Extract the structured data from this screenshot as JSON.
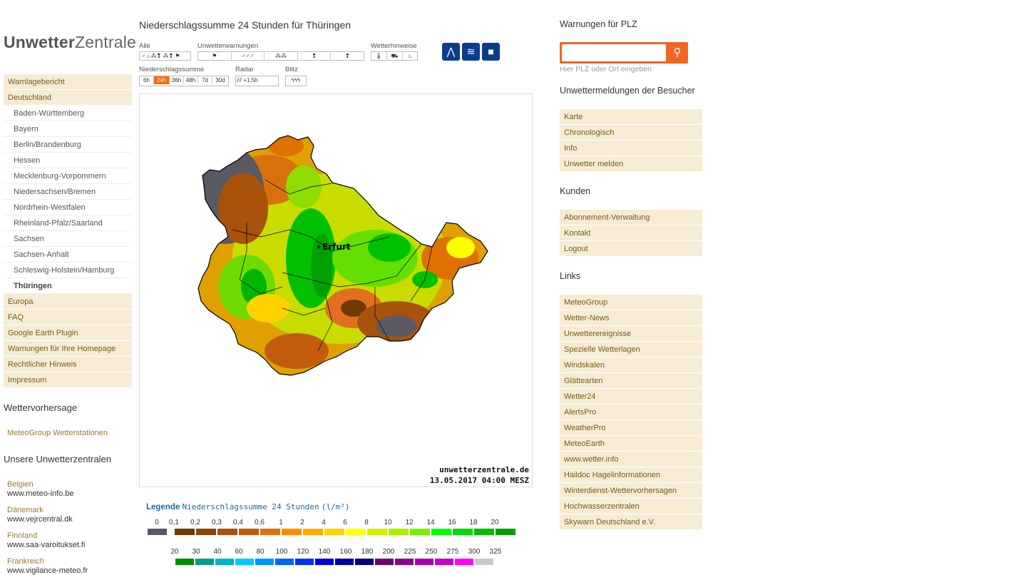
{
  "logo": {
    "bold": "Unwetter",
    "normal": "Zentrale"
  },
  "nav": {
    "items_top": [
      "Warnlagebericht",
      "Deutschland"
    ],
    "subitems": [
      "Baden-Württemberg",
      "Bayern",
      "Berlin/Brandenburg",
      "Hessen",
      "Mecklenburg-Vorpommern",
      "Niedersachsen/Bremen",
      "Nordrhein-Westfalen",
      "Rheinland-Pfalz/Saarland",
      "Sachsen",
      "Sachsen-Anhalt",
      "Schleswig-Holstein/Hamburg",
      "Thüringen"
    ],
    "active_sub": "Thüringen",
    "items_bottom": [
      "Europa",
      "FAQ",
      "Google Earth Plugin",
      "Warnungen für Ihre Homepage",
      "Rechtlicher Hinweis",
      "Impressum"
    ]
  },
  "forecast": {
    "heading": "Wettervorhersage",
    "link": "MeteoGroup Wetterstationen"
  },
  "centrals": {
    "heading": "Unsere Unwetterzentralen",
    "items": [
      {
        "country": "Belgien",
        "url": "www.meteo-info.be"
      },
      {
        "country": "Dänemark",
        "url": "www.vejrcentral.dk"
      },
      {
        "country": "Finnland",
        "url": "www.saa-varoitukset.fi"
      },
      {
        "country": "Frankreich",
        "url": "www.vigilance-meteo.fr"
      }
    ]
  },
  "page": {
    "title": "Niederschlagssumme 24 Stunden für Thüringen"
  },
  "toolbar": {
    "alle": "Alle",
    "unwetterwarnungen": "Unwetterwarnungen",
    "wetterhinweise": "Wetterhinweise",
    "niederschlagssumme": "Niederschlagssumme",
    "radar": "Radar",
    "blitz": "Blitz",
    "periods": [
      "6h",
      "24h",
      "36h",
      "48h",
      "7d",
      "30d"
    ],
    "selected_period": "24h",
    "radar_label": "+1,5h",
    "icons": [
      "autobahn-icon",
      "hochwasser-icon",
      "webcam-icon"
    ]
  },
  "map": {
    "city": "Erfurt",
    "watermark": "unwetterzentrale.de",
    "timestamp": "13.05.2017 04:00 MESZ"
  },
  "legend": {
    "label": "Legende",
    "title": "Niederschlagssumme 24 Stunden",
    "unit": "(l/m²)",
    "row1_ticks": [
      "0",
      "0,1",
      "0,2",
      "0,3",
      "0,4",
      "0,6",
      "1",
      "2",
      "4",
      "6",
      "8",
      "10",
      "12",
      "14",
      "16",
      "18",
      "20"
    ],
    "row1_colors": [
      "#5a5a64",
      "#6e3a06",
      "#8c4408",
      "#a8520c",
      "#c05c0c",
      "#e0700c",
      "#ff8c00",
      "#ffaa00",
      "#ffd200",
      "#ffff00",
      "#d2f000",
      "#aaf000",
      "#78f000",
      "#00ff00",
      "#00dc00",
      "#00c000",
      "#00a000"
    ],
    "row2_ticks": [
      "20",
      "30",
      "40",
      "60",
      "80",
      "100",
      "120",
      "140",
      "160",
      "180",
      "200",
      "225",
      "250",
      "275",
      "300",
      "325"
    ],
    "row2_colors": [
      "#008c00",
      "#0a9a8c",
      "#00b4c8",
      "#00c8ff",
      "#0096ff",
      "#0064ff",
      "#0032ff",
      "#0000dc",
      "#0000aa",
      "#000080",
      "#6e006e",
      "#8c008c",
      "#aa00aa",
      "#c800c8",
      "#ff00ff",
      "#c8c8c8"
    ]
  },
  "right": {
    "plz_heading": "Warnungen für PLZ",
    "search_placeholder": "",
    "hint": "Hier PLZ oder Ort eingeben",
    "visitors_heading": "Unwettermeldungen der Besucher",
    "visitors": [
      "Karte",
      "Chronologisch",
      "Info",
      "Unwetter melden"
    ],
    "kunden_heading": "Kunden",
    "kunden": [
      "Abonnement-Verwaltung",
      "Kontakt",
      "Logout"
    ],
    "links_heading": "Links",
    "links": [
      "MeteoGroup",
      "Wetter-News",
      "Unwetterereignisse",
      "Spezielle Wetterlagen",
      "Windskalen",
      "Glättearten",
      "Wetter24",
      "AlertsPro",
      "WeatherPro",
      "MeteoEarth",
      "www.wetter.info",
      "Haildoc Hagelinformationen",
      "Winterdienst-Wettervorhersagen",
      "Hochwasserzentralen",
      "Skywarn Deutschland e.V."
    ]
  }
}
